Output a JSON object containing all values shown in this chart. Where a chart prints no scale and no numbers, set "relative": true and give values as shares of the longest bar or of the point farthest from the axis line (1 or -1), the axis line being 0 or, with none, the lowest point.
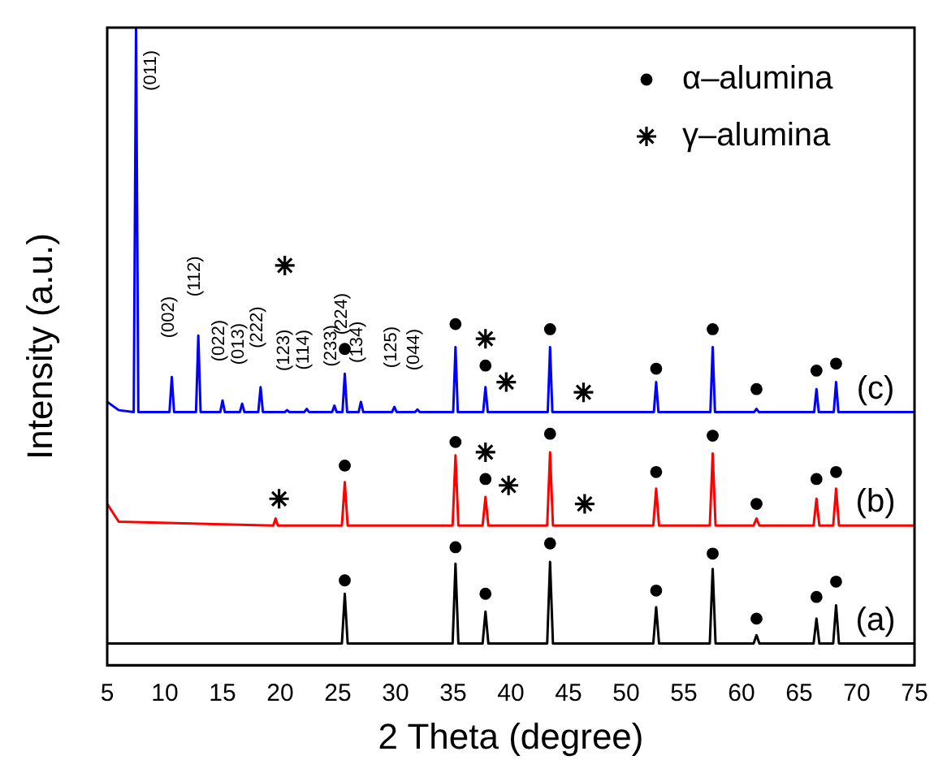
{
  "chart_data": {
    "type": "line",
    "relative": true,
    "xlabel": "2 Theta (degree)",
    "ylabel": "Intensity (a.u.)",
    "xlim": [
      5,
      75
    ],
    "xticks": [
      5,
      10,
      15,
      20,
      25,
      30,
      35,
      40,
      45,
      50,
      55,
      60,
      65,
      70,
      75
    ],
    "tick_labels": "x",
    "grid": false,
    "legend": "top right",
    "marker": "none",
    "series": [
      {
        "color": "#000000",
        "x": [
          5,
          25.35,
          25.6,
          25.85,
          34.95,
          35.2,
          35.45,
          37.55,
          37.8,
          38.05,
          43.15,
          43.4,
          43.65,
          52.35,
          52.6,
          52.85,
          57.25,
          57.5,
          57.75,
          61.05,
          61.3,
          61.55,
          66.25,
          66.5,
          66.75,
          67.95,
          68.2,
          68.45,
          75
        ],
        "values": [
          0.034,
          0.034,
          0.112,
          0.034,
          0.034,
          0.159,
          0.034,
          0.034,
          0.084,
          0.034,
          0.034,
          0.162,
          0.034,
          0.034,
          0.091,
          0.034,
          0.034,
          0.151,
          0.034,
          0.034,
          0.047,
          0.034,
          0.034,
          0.073,
          0.034,
          0.034,
          0.094,
          0.034,
          0.034
        ]
      },
      {
        "color": "#ff0000",
        "x": [
          5,
          6,
          19.4,
          19.6,
          19.8,
          25.35,
          25.6,
          25.85,
          34.95,
          35.2,
          35.45,
          37.55,
          37.8,
          38.05,
          43.15,
          43.4,
          43.65,
          52.35,
          52.6,
          52.85,
          57.25,
          57.5,
          57.75,
          61.05,
          61.3,
          61.55,
          66.25,
          66.5,
          66.75,
          67.95,
          68.2,
          68.45,
          75
        ],
        "values": [
          0.253,
          0.225,
          0.219,
          0.23,
          0.219,
          0.219,
          0.287,
          0.219,
          0.219,
          0.329,
          0.219,
          0.219,
          0.264,
          0.219,
          0.219,
          0.334,
          0.219,
          0.219,
          0.277,
          0.219,
          0.219,
          0.332,
          0.219,
          0.219,
          0.23,
          0.219,
          0.219,
          0.261,
          0.219,
          0.219,
          0.277,
          0.219,
          0.219
        ]
      },
      {
        "color": "#0000ff",
        "x": [
          5,
          6,
          7.3,
          7.5,
          7.7,
          10.4,
          10.6,
          10.8,
          12.7,
          12.9,
          13.1,
          14.8,
          15,
          15.2,
          16.5,
          16.7,
          16.9,
          18.1,
          18.3,
          18.5,
          20.4,
          20.6,
          20.8,
          22.1,
          22.3,
          22.5,
          24.5,
          24.7,
          24.9,
          25.4,
          25.6,
          25.8,
          26.8,
          27,
          27.2,
          29.7,
          29.9,
          30.1,
          31.7,
          31.9,
          32.1,
          35,
          35.2,
          35.4,
          37.6,
          37.8,
          38,
          43.2,
          43.4,
          43.6,
          52.4,
          52.6,
          52.8,
          57.3,
          57.5,
          57.7,
          61.1,
          61.3,
          61.5,
          66.3,
          66.5,
          66.7,
          68,
          68.2,
          68.4,
          75
        ],
        "values": [
          0.413,
          0.4,
          0.397,
          1,
          0.397,
          0.397,
          0.452,
          0.397,
          0.397,
          0.517,
          0.397,
          0.397,
          0.415,
          0.397,
          0.397,
          0.41,
          0.397,
          0.397,
          0.436,
          0.397,
          0.397,
          0.4,
          0.397,
          0.397,
          0.402,
          0.397,
          0.397,
          0.407,
          0.397,
          0.397,
          0.457,
          0.397,
          0.397,
          0.413,
          0.397,
          0.397,
          0.405,
          0.397,
          0.397,
          0.401,
          0.397,
          0.397,
          0.499,
          0.397,
          0.397,
          0.436,
          0.397,
          0.397,
          0.499,
          0.397,
          0.397,
          0.444,
          0.397,
          0.397,
          0.499,
          0.397,
          0.397,
          0.402,
          0.397,
          0.397,
          0.433,
          0.397,
          0.397,
          0.444,
          0.397,
          0.397
        ]
      },
      {
        "type": "scatter",
        "name": "α–alumina",
        "color": "#000000",
        "marker": "circle",
        "x": [
          25.6,
          35.2,
          37.8,
          43.4,
          52.6,
          57.5,
          61.3,
          66.5,
          68.2,
          25.6,
          35.2,
          37.8,
          43.4,
          52.6,
          57.5,
          61.3,
          66.5,
          68.2,
          25.6,
          35.2,
          37.8,
          43.4,
          52.6,
          57.5,
          61.3,
          66.5,
          68.2
        ],
        "values": [
          0.133,
          0.185,
          0.112,
          0.191,
          0.117,
          0.175,
          0.073,
          0.107,
          0.131,
          0.313,
          0.35,
          0.292,
          0.363,
          0.303,
          0.36,
          0.253,
          0.292,
          0.303,
          0.496,
          0.535,
          0.47,
          0.527,
          0.465,
          0.527,
          0.433,
          0.462,
          0.473
        ]
      },
      {
        "type": "scatter",
        "name": "γ–alumina",
        "color": "#000000",
        "marker": "cross",
        "x": [
          19.9,
          37.8,
          39.8,
          46.4,
          20.4,
          37.8,
          39.6,
          46.3
        ],
        "values": [
          0.261,
          0.334,
          0.282,
          0.253,
          0.627,
          0.512,
          0.444,
          0.428
        ]
      }
    ],
    "annotations": [
      "(a)",
      "(b)",
      "(c)",
      {
        "text": "(011)",
        "x": 7.5,
        "y": 1
      },
      {
        "text": "(002)",
        "x": 10.6,
        "y": 0.452
      },
      {
        "text": "(112)",
        "x": 12.9,
        "y": 0.517
      },
      {
        "text": "(022)",
        "x": 15,
        "y": 0.415
      },
      {
        "text": "(013)",
        "x": 16.7,
        "y": 0.41
      },
      {
        "text": "(222)",
        "x": 18.3,
        "y": 0.436
      },
      {
        "text": "(123)",
        "x": 20.6,
        "y": 0.4
      },
      {
        "text": "(114)",
        "x": 22.3,
        "y": 0.402
      },
      {
        "text": "(233)",
        "x": 24.7,
        "y": 0.407
      },
      {
        "text": "(224)",
        "x": 25.6,
        "y": 0.457
      },
      {
        "text": "(134)",
        "x": 27,
        "y": 0.413
      },
      {
        "text": "(125)",
        "x": 29.9,
        "y": 0.405
      },
      {
        "text": "(044)",
        "x": 31.9,
        "y": 0.401
      }
    ]
  }
}
